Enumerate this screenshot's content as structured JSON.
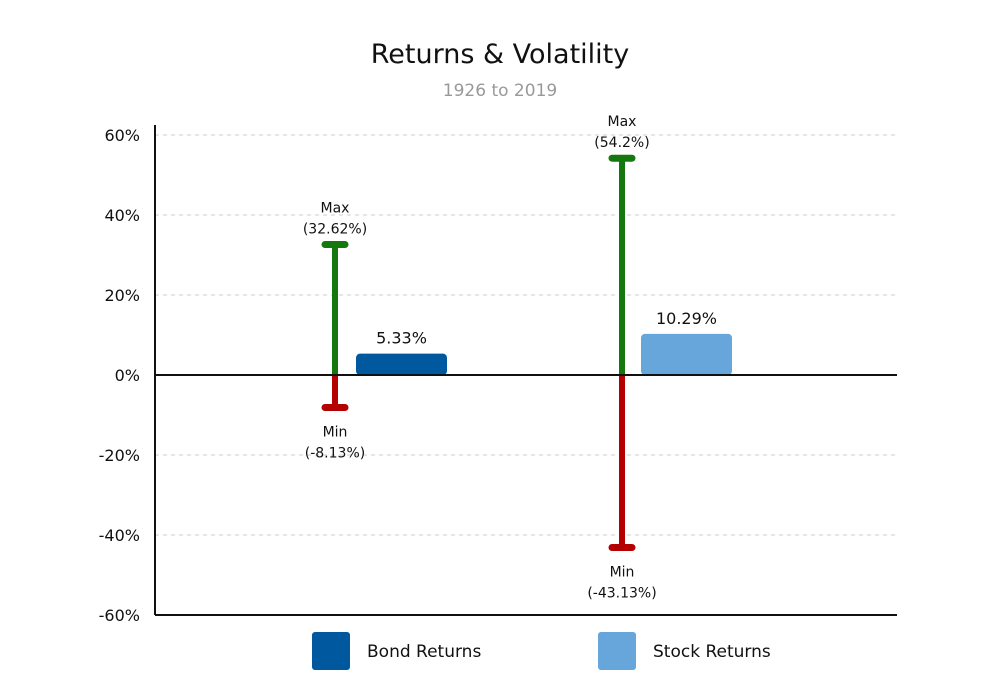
{
  "chart_data": {
    "type": "bar",
    "title": "Returns & Volatility",
    "subtitle": "1926 to 2019",
    "ylim": [
      -60,
      60
    ],
    "yticks": [
      60,
      40,
      20,
      0,
      -20,
      -40,
      -60
    ],
    "ytick_labels": [
      "60%",
      "40%",
      "20%",
      "0%",
      "-20%",
      "-40%",
      "-60%"
    ],
    "grid": true,
    "legend_position": "bottom",
    "series": [
      {
        "name": "Bond Returns",
        "value": 5.33,
        "value_label": "5.33%",
        "color": "#00589f",
        "max": 32.62,
        "max_label": [
          "Max",
          "(32.62%)"
        ],
        "min": -8.13,
        "min_label": [
          "Min",
          "(-8.13%)"
        ]
      },
      {
        "name": "Stock Returns",
        "value": 10.29,
        "value_label": "10.29%",
        "color": "#66a6da",
        "max": 54.2,
        "max_label": [
          "Max",
          "(54.2%)"
        ],
        "min": -43.13,
        "min_label": [
          "Min",
          "(-43.13%)"
        ]
      }
    ],
    "colors": {
      "max": "#15780e",
      "min": "#b30000",
      "axis": "#111111",
      "grid": "#cccccc"
    }
  }
}
